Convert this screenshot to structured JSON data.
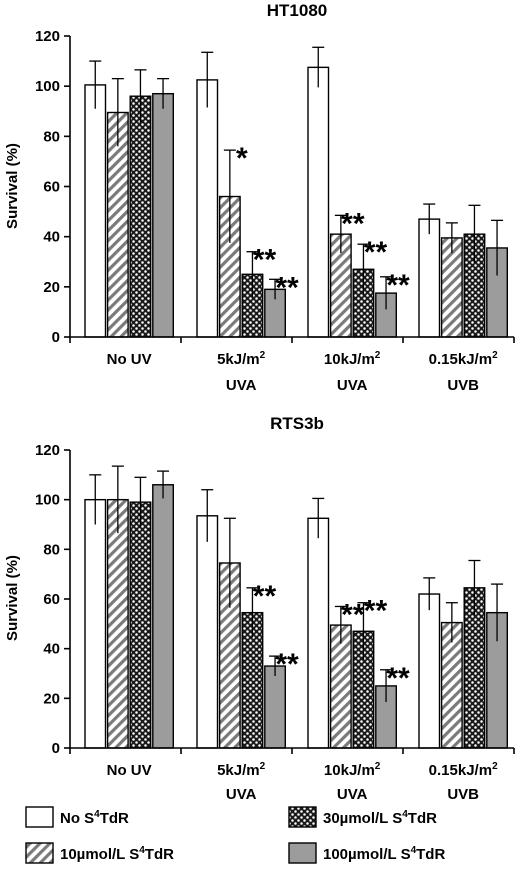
{
  "legend": [
    {
      "main": "No S",
      "sup": "4",
      "rest": "TdR",
      "pattern": "white"
    },
    {
      "main": "10µmol/L S",
      "sup": "4",
      "rest": "TdR",
      "pattern": "hatch"
    },
    {
      "main": "30µmol/L S",
      "sup": "4",
      "rest": "TdR",
      "pattern": "dots"
    },
    {
      "main": "100µmol/L S",
      "sup": "4",
      "rest": "TdR",
      "pattern": "gray"
    }
  ],
  "chart_data": [
    {
      "type": "bar",
      "title": "HT1080",
      "ylabel": "Survival (%)",
      "ylim": [
        0,
        120
      ],
      "yticks": [
        0,
        20,
        40,
        60,
        80,
        100,
        120
      ],
      "categories": [
        {
          "line1": "No UV",
          "line2": ""
        },
        {
          "line1": "5kJ/m",
          "sup": "2",
          "line2": "UVA"
        },
        {
          "line1": "10kJ/m",
          "sup": "2",
          "line2": "UVA"
        },
        {
          "line1": "0.15kJ/m",
          "sup": "2",
          "line2": "UVB"
        }
      ],
      "series": [
        {
          "name": "No S4TdR",
          "values": [
            100.5,
            102.5,
            107.5,
            47
          ],
          "errors": [
            9.5,
            11,
            8,
            6
          ]
        },
        {
          "name": "10µmol/L S4TdR",
          "values": [
            89.5,
            56,
            41,
            39.5
          ],
          "errors": [
            13.5,
            18.5,
            7.5,
            6
          ]
        },
        {
          "name": "30µmol/L S4TdR",
          "values": [
            96,
            25,
            27,
            41
          ],
          "errors": [
            10.5,
            9,
            10,
            11.5
          ]
        },
        {
          "name": "100µmol/L S4TdR",
          "values": [
            97,
            19,
            17.5,
            35.5
          ],
          "errors": [
            6,
            4,
            6.5,
            11
          ]
        }
      ],
      "significance": [
        {
          "category": 1,
          "series": 1,
          "text": "*"
        },
        {
          "category": 1,
          "series": 2,
          "text": "**"
        },
        {
          "category": 1,
          "series": 3,
          "text": "**"
        },
        {
          "category": 2,
          "series": 1,
          "text": "**"
        },
        {
          "category": 2,
          "series": 2,
          "text": "**"
        },
        {
          "category": 2,
          "series": 3,
          "text": "**"
        }
      ],
      "grid": false
    },
    {
      "type": "bar",
      "title": "RTS3b",
      "ylabel": "Survival (%)",
      "ylim": [
        0,
        120
      ],
      "yticks": [
        0,
        20,
        40,
        60,
        80,
        100,
        120
      ],
      "categories": [
        {
          "line1": "No UV",
          "line2": ""
        },
        {
          "line1": "5kJ/m",
          "sup": "2",
          "line2": "UVA"
        },
        {
          "line1": "10kJ/m",
          "sup": "2",
          "line2": "UVA"
        },
        {
          "line1": "0.15kJ/m",
          "sup": "2",
          "line2": "UVB"
        }
      ],
      "series": [
        {
          "name": "No S4TdR",
          "values": [
            100,
            93.5,
            92.5,
            62
          ],
          "errors": [
            10,
            10.5,
            8,
            6.5
          ]
        },
        {
          "name": "10µmol/L S4TdR",
          "values": [
            100,
            74.5,
            49.5,
            50.5
          ],
          "errors": [
            13.5,
            18,
            7.5,
            8
          ]
        },
        {
          "name": "30µmol/L S4TdR",
          "values": [
            99,
            54.5,
            47,
            64.5
          ],
          "errors": [
            10,
            10,
            11.5,
            11
          ]
        },
        {
          "name": "100µmol/L S4TdR",
          "values": [
            106,
            33,
            25,
            54.5
          ],
          "errors": [
            5.5,
            4,
            6.5,
            11.5
          ]
        }
      ],
      "significance": [
        {
          "category": 1,
          "series": 2,
          "text": "**"
        },
        {
          "category": 1,
          "series": 3,
          "text": "**"
        },
        {
          "category": 2,
          "series": 1,
          "text": "**"
        },
        {
          "category": 2,
          "series": 2,
          "text": "**"
        },
        {
          "category": 2,
          "series": 3,
          "text": "**"
        }
      ],
      "grid": false
    }
  ]
}
